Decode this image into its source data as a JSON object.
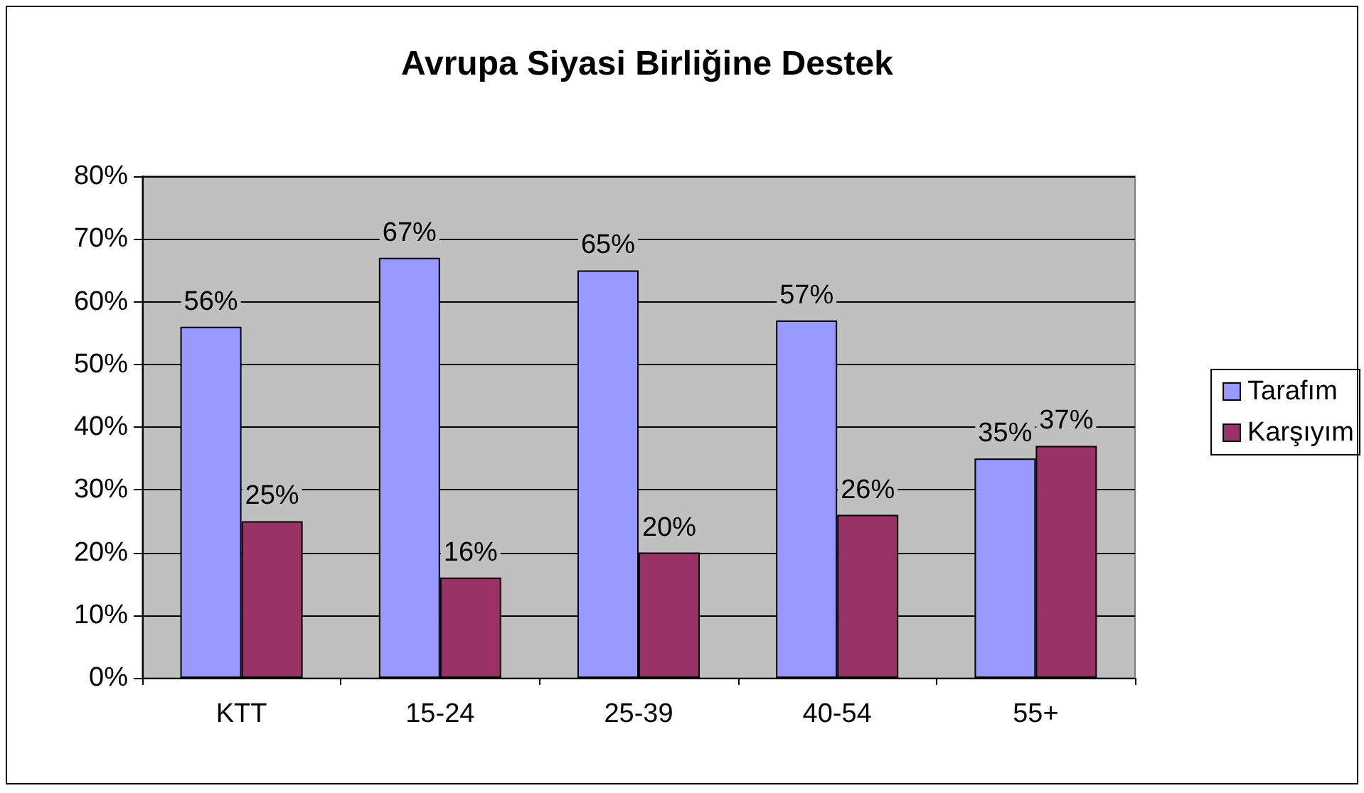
{
  "chart_data": {
    "type": "bar",
    "title": "Avrupa Siyasi Birliğine Destek",
    "categories": [
      "KTT",
      "15-24",
      "25-39",
      "40-54",
      "55+"
    ],
    "series": [
      {
        "name": "Tarafım",
        "color": "#9999ff",
        "values": [
          56,
          67,
          65,
          57,
          35
        ],
        "value_labels": [
          "56%",
          "67%",
          "65%",
          "57%",
          "35%"
        ]
      },
      {
        "name": "Karşıyım",
        "color": "#993366",
        "values": [
          25,
          16,
          20,
          26,
          37
        ],
        "value_labels": [
          "25%",
          "16%",
          "20%",
          "26%",
          "37%"
        ]
      }
    ],
    "ylim": [
      0,
      80
    ],
    "yticks": [
      {
        "value": 0,
        "label": "0%"
      },
      {
        "value": 10,
        "label": "10%"
      },
      {
        "value": 20,
        "label": "20%"
      },
      {
        "value": 30,
        "label": "30%"
      },
      {
        "value": 40,
        "label": "40%"
      },
      {
        "value": 50,
        "label": "50%"
      },
      {
        "value": 60,
        "label": "60%"
      },
      {
        "value": 70,
        "label": "70%"
      },
      {
        "value": 80,
        "label": "80%"
      }
    ],
    "grid": "y",
    "legend": "right"
  }
}
